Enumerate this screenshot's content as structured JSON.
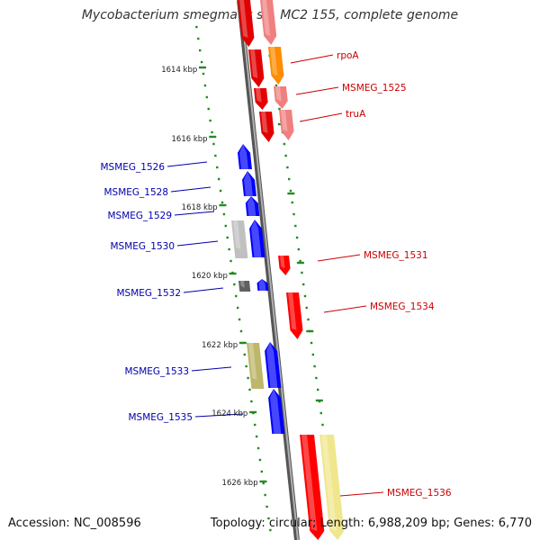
{
  "title": "Mycobacterium smegmatis str. MC2 155, complete genome",
  "footer": {
    "accession": "Accession: NC_008596",
    "topology": "Topology: circular; Length: 6,988,209 bp; Genes: 6,770"
  },
  "colors": {
    "backbone": "#808080",
    "forward_gene": "#ff0000",
    "reverse_gene": "#0000ff",
    "forward_label": "#cc0000",
    "reverse_label": "#0000aa",
    "tick": "#228b22"
  },
  "ticks": [
    {
      "label": "1614 kbp"
    },
    {
      "label": "1616 kbp"
    },
    {
      "label": "1618 kbp"
    },
    {
      "label": "1620 kbp"
    },
    {
      "label": "1622 kbp"
    },
    {
      "label": "1624 kbp"
    },
    {
      "label": "1626 kbp"
    }
  ],
  "forward_labels": [
    "rpoA",
    "MSMEG_1525",
    "truA",
    "MSMEG_1531",
    "MSMEG_1534",
    "MSMEG_1536"
  ],
  "reverse_labels": [
    "MSMEG_1526",
    "MSMEG_1528",
    "MSMEG_1529",
    "MSMEG_1530",
    "MSMEG_1532",
    "MSMEG_1533",
    "MSMEG_1535"
  ]
}
